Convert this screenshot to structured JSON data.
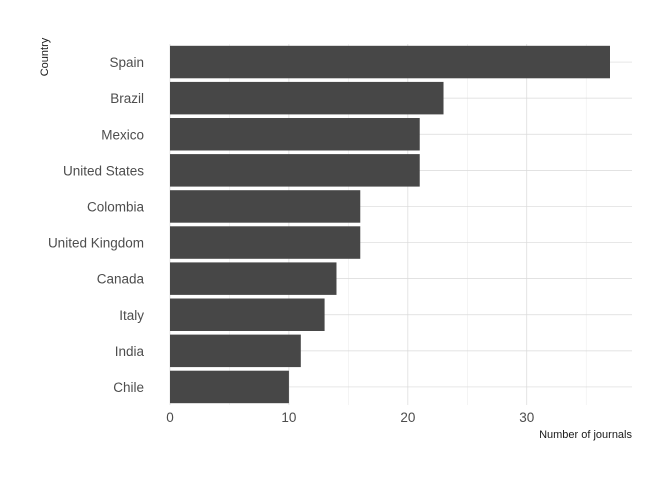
{
  "chart_data": {
    "type": "bar",
    "orientation": "horizontal",
    "categories": [
      "Spain",
      "Brazil",
      "Mexico",
      "United States",
      "Colombia",
      "United Kingdom",
      "Canada",
      "Italy",
      "India",
      "Chile"
    ],
    "values": [
      37,
      23,
      21,
      21,
      16,
      16,
      14,
      13,
      11,
      10
    ],
    "xlabel": "Number of journals",
    "ylabel": "Country",
    "xlim": [
      0,
      38.85
    ],
    "xticks": [
      0,
      10,
      20,
      30
    ],
    "bar_color": "#474747",
    "grid": true,
    "legend": "none"
  }
}
